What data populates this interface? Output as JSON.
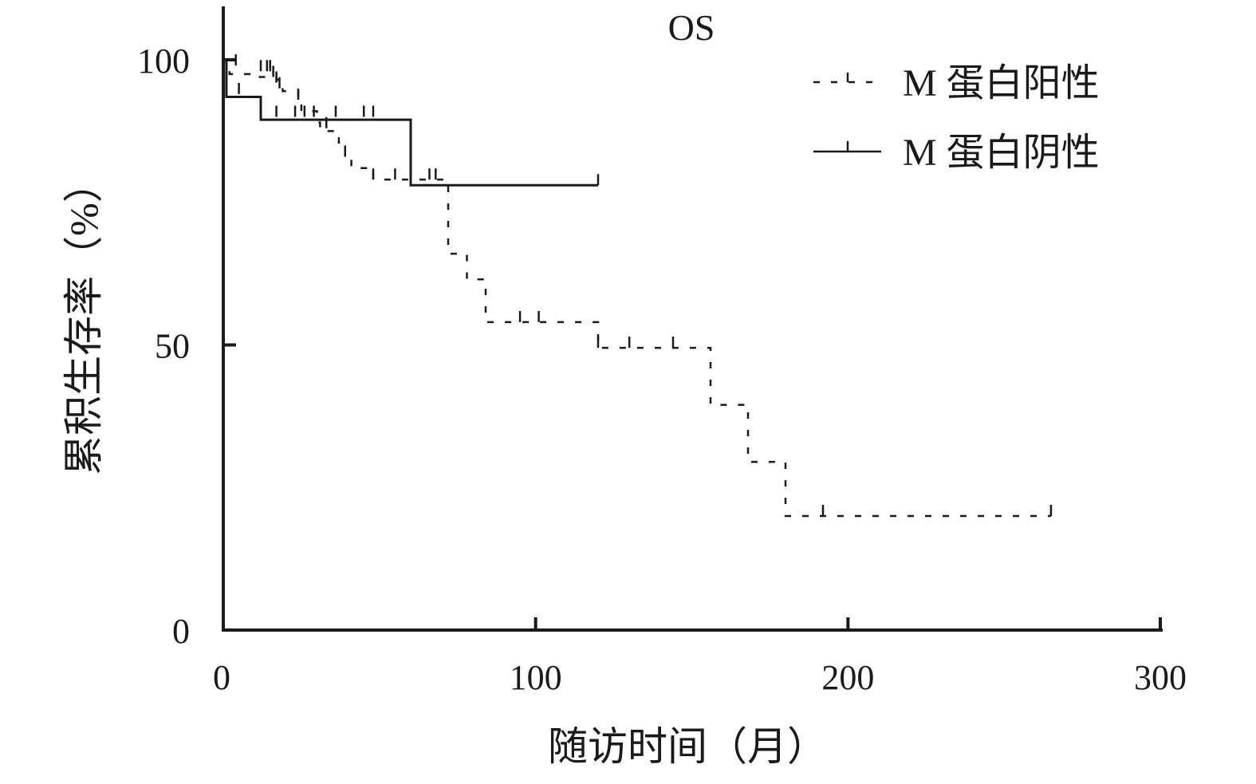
{
  "chart_data": {
    "type": "line",
    "title": "OS",
    "xlabel": "随访时间（月）",
    "ylabel": "累积生存率（%）",
    "xlim": [
      0,
      300
    ],
    "ylim": [
      0,
      100
    ],
    "x_ticks": [
      0,
      100,
      200,
      300
    ],
    "y_ticks": [
      0,
      50,
      100
    ],
    "x_tick_labels": [
      "0",
      "100",
      "200",
      "300"
    ],
    "y_tick_labels": [
      "0",
      "50",
      "100"
    ],
    "grid": false,
    "legend_position": "top-right",
    "series": [
      {
        "name": "M 蛋白阳性",
        "line_style": "dashed",
        "color": "#1a1a1a",
        "steps": [
          [
            0,
            100
          ],
          [
            2,
            97.5
          ],
          [
            4,
            97.5
          ],
          [
            6,
            97.5
          ],
          [
            8,
            97.5
          ],
          [
            10,
            97
          ],
          [
            17,
            96.5
          ],
          [
            19,
            94.5
          ],
          [
            24,
            92
          ],
          [
            25,
            91
          ],
          [
            30,
            89
          ],
          [
            31,
            87.5
          ],
          [
            36,
            87.5
          ],
          [
            37,
            85.5
          ],
          [
            39,
            83
          ],
          [
            41,
            81
          ],
          [
            48,
            79
          ],
          [
            72,
            79
          ],
          [
            72,
            66
          ],
          [
            77,
            66
          ],
          [
            78,
            61.5
          ],
          [
            83,
            61.5
          ],
          [
            84,
            54
          ],
          [
            119,
            54
          ],
          [
            120,
            49.5
          ],
          [
            156,
            49.5
          ],
          [
            156,
            39.5
          ],
          [
            168,
            39.5
          ],
          [
            168,
            29.5
          ],
          [
            180,
            29.5
          ],
          [
            180,
            20
          ],
          [
            265,
            20
          ]
        ],
        "censored": [
          [
            1,
            98
          ],
          [
            4,
            99
          ],
          [
            12,
            98
          ],
          [
            14,
            98
          ],
          [
            15,
            98
          ],
          [
            16,
            97
          ],
          [
            17,
            96
          ],
          [
            18,
            95
          ],
          [
            24,
            93
          ],
          [
            33,
            88
          ],
          [
            39,
            83
          ],
          [
            48,
            79
          ],
          [
            55,
            79
          ],
          [
            60,
            79
          ],
          [
            66,
            79
          ],
          [
            68,
            79
          ],
          [
            95,
            54
          ],
          [
            101,
            54
          ],
          [
            120,
            49.5
          ],
          [
            130,
            49.5
          ],
          [
            144,
            49.5
          ],
          [
            192,
            20
          ],
          [
            265,
            20
          ]
        ]
      },
      {
        "name": "M 蛋白阴性",
        "line_style": "solid",
        "color": "#1a1a1a",
        "steps": [
          [
            0,
            100
          ],
          [
            1,
            93.5
          ],
          [
            12,
            93.5
          ],
          [
            12,
            89.5
          ],
          [
            60,
            89.5
          ],
          [
            60,
            78
          ],
          [
            120,
            78
          ]
        ],
        "censored": [
          [
            5,
            94
          ],
          [
            12,
            90
          ],
          [
            17,
            90
          ],
          [
            23,
            90
          ],
          [
            26,
            90
          ],
          [
            29,
            90
          ],
          [
            36,
            90
          ],
          [
            45,
            90
          ],
          [
            48,
            90
          ],
          [
            120,
            78
          ]
        ]
      }
    ]
  }
}
